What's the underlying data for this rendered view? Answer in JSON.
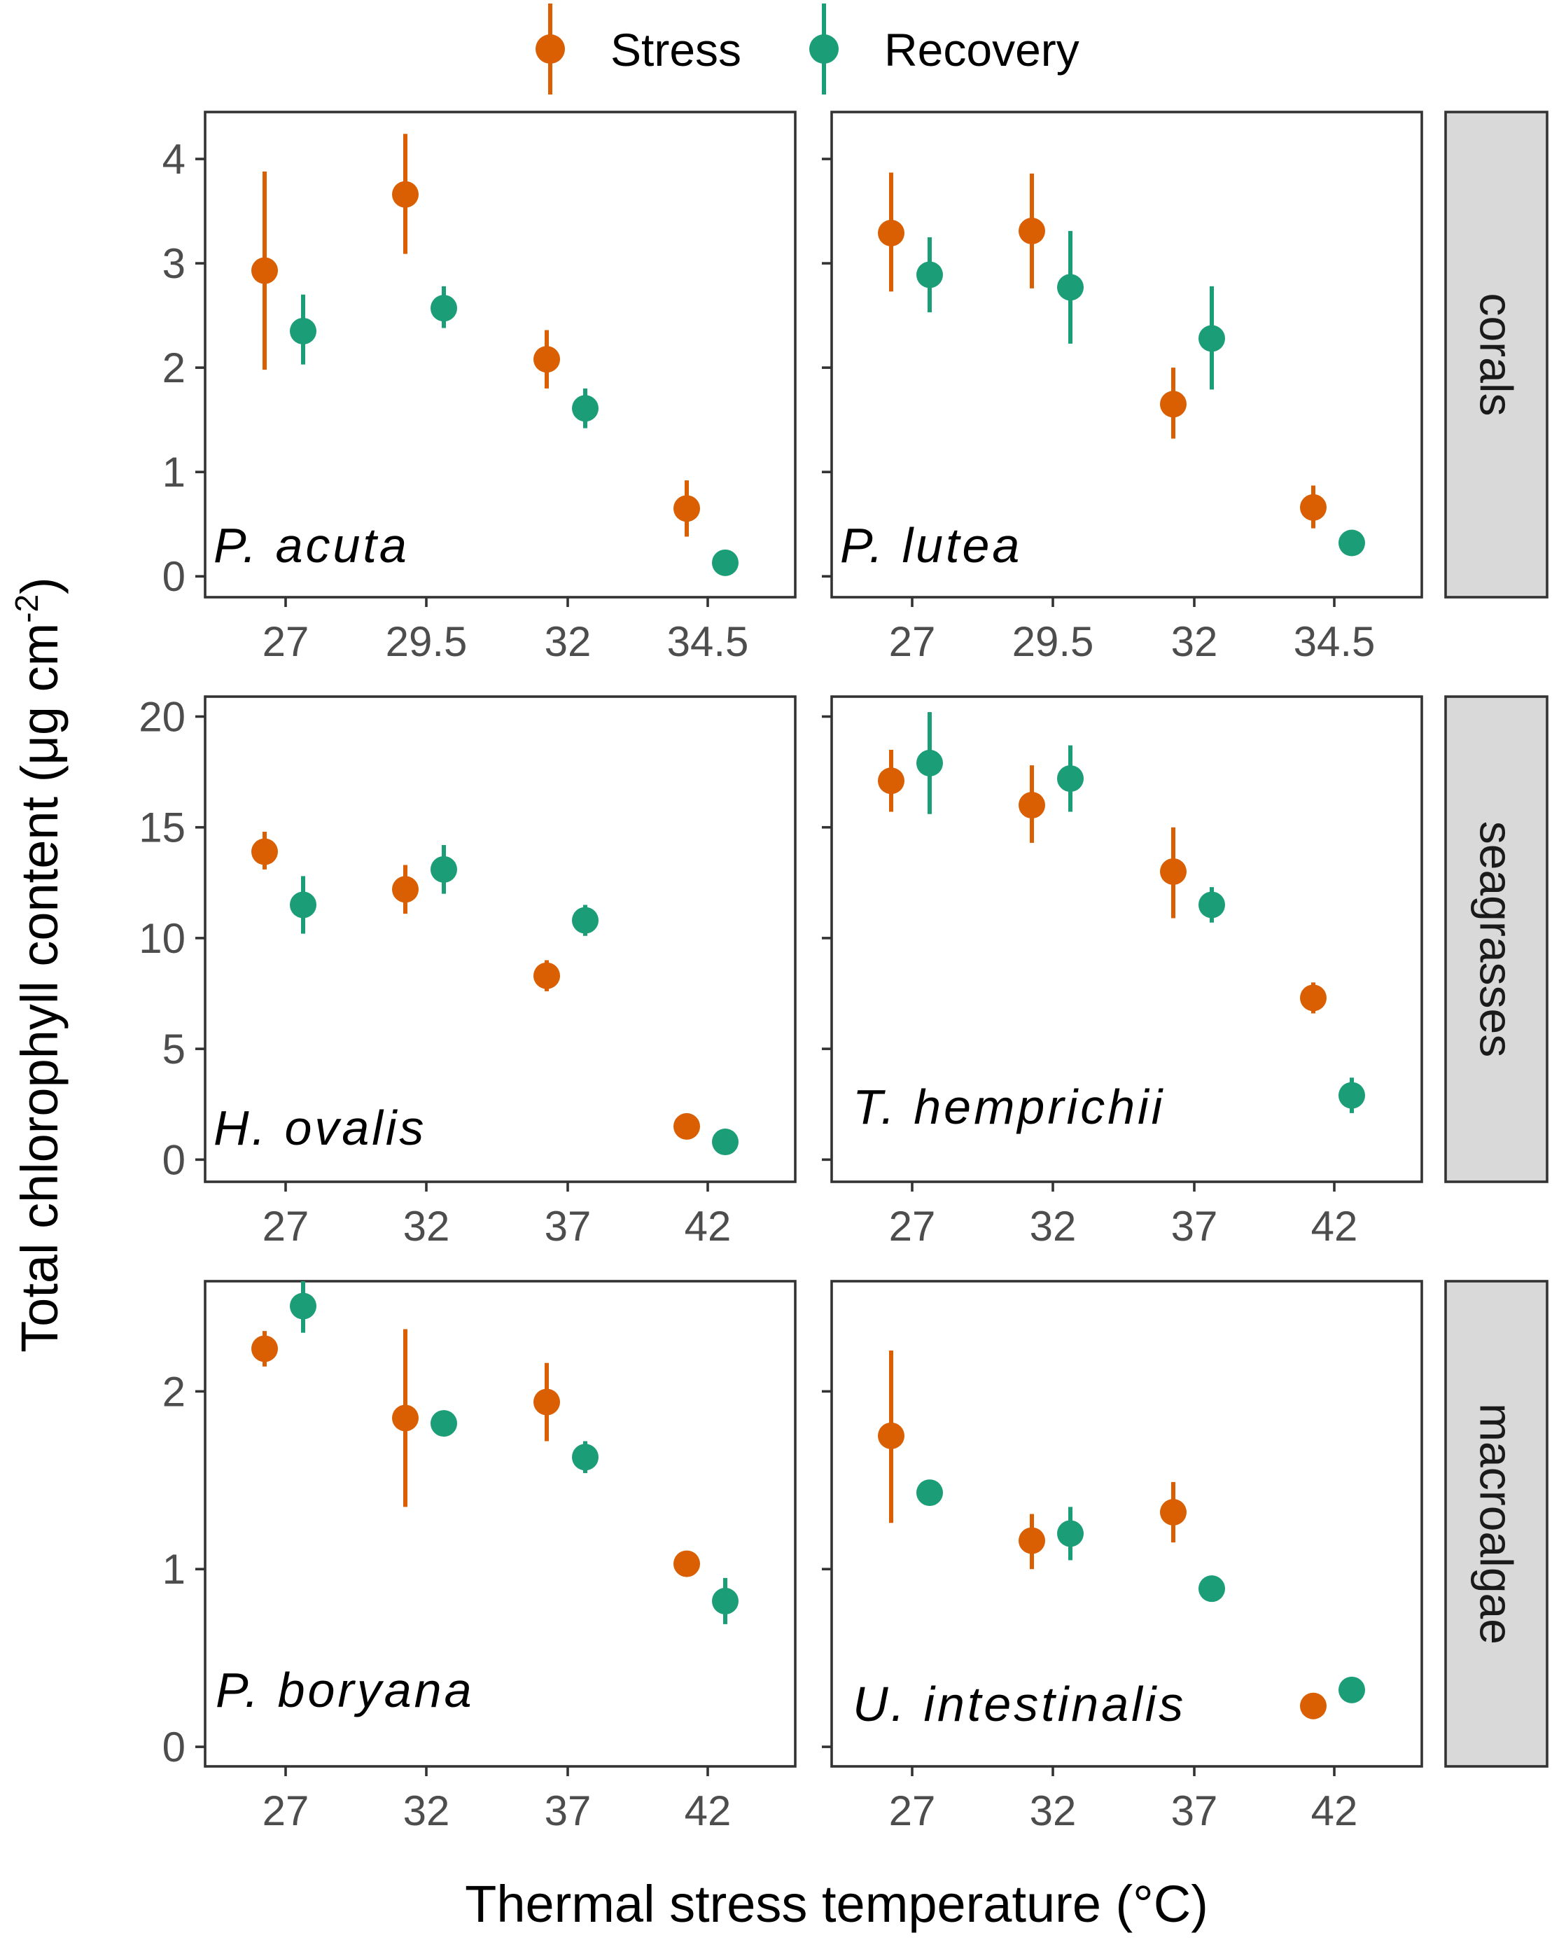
{
  "chart_data": {
    "type": "scatter",
    "subtype": "point-with-errorbars, faceted",
    "legend": {
      "position": "top",
      "items": [
        {
          "name": "Stress",
          "color": "#d95f02"
        },
        {
          "name": "Recovery",
          "color": "#1b9e77"
        }
      ]
    },
    "xlabel": "Thermal stress temperature (°C)",
    "ylabel": "Total chlorophyll content (μg cm",
    "ylabel_sup": "-2",
    "ylabel_close": ")",
    "rows": [
      {
        "group": "corals",
        "ylim": [
          -0.2,
          4.45
        ],
        "yticks": [
          0,
          1,
          2,
          3,
          4
        ],
        "xticks": [
          "27",
          "29.5",
          "32",
          "34.5"
        ],
        "panels": [
          {
            "species": "P. acuta",
            "series": [
              {
                "name": "Stress",
                "color": "#d95f02",
                "points": [
                  {
                    "x": 0,
                    "y": 2.93,
                    "lo": 1.98,
                    "hi": 3.88
                  },
                  {
                    "x": 1,
                    "y": 3.66,
                    "lo": 3.09,
                    "hi": 4.24
                  },
                  {
                    "x": 2,
                    "y": 2.08,
                    "lo": 1.8,
                    "hi": 2.36
                  },
                  {
                    "x": 3,
                    "y": 0.65,
                    "lo": 0.38,
                    "hi": 0.92
                  }
                ]
              },
              {
                "name": "Recovery",
                "color": "#1b9e77",
                "points": [
                  {
                    "x": 0,
                    "y": 2.35,
                    "lo": 2.03,
                    "hi": 2.7
                  },
                  {
                    "x": 1,
                    "y": 2.57,
                    "lo": 2.38,
                    "hi": 2.78
                  },
                  {
                    "x": 2,
                    "y": 1.61,
                    "lo": 1.42,
                    "hi": 1.8
                  },
                  {
                    "x": 3,
                    "y": 0.13,
                    "lo": 0.07,
                    "hi": 0.19
                  }
                ]
              }
            ]
          },
          {
            "species": "P. lutea",
            "series": [
              {
                "name": "Stress",
                "color": "#d95f02",
                "points": [
                  {
                    "x": 0,
                    "y": 3.29,
                    "lo": 2.73,
                    "hi": 3.87
                  },
                  {
                    "x": 1,
                    "y": 3.31,
                    "lo": 2.76,
                    "hi": 3.86
                  },
                  {
                    "x": 2,
                    "y": 1.65,
                    "lo": 1.32,
                    "hi": 2.0
                  },
                  {
                    "x": 3,
                    "y": 0.66,
                    "lo": 0.46,
                    "hi": 0.87
                  }
                ]
              },
              {
                "name": "Recovery",
                "color": "#1b9e77",
                "points": [
                  {
                    "x": 0,
                    "y": 2.89,
                    "lo": 2.53,
                    "hi": 3.25
                  },
                  {
                    "x": 1,
                    "y": 2.77,
                    "lo": 2.23,
                    "hi": 3.31
                  },
                  {
                    "x": 2,
                    "y": 2.28,
                    "lo": 1.79,
                    "hi": 2.78
                  },
                  {
                    "x": 3,
                    "y": 0.32,
                    "lo": 0.27,
                    "hi": 0.37
                  }
                ]
              }
            ]
          }
        ]
      },
      {
        "group": "seagrasses",
        "ylim": [
          -1.0,
          20.9
        ],
        "yticks": [
          0,
          5,
          10,
          15,
          20
        ],
        "xticks": [
          "27",
          "32",
          "37",
          "42"
        ],
        "panels": [
          {
            "species": "H. ovalis",
            "series": [
              {
                "name": "Stress",
                "color": "#d95f02",
                "points": [
                  {
                    "x": 0,
                    "y": 13.9,
                    "lo": 13.1,
                    "hi": 14.8
                  },
                  {
                    "x": 1,
                    "y": 12.2,
                    "lo": 11.1,
                    "hi": 13.3
                  },
                  {
                    "x": 2,
                    "y": 8.3,
                    "lo": 7.6,
                    "hi": 9.0
                  },
                  {
                    "x": 3,
                    "y": 1.5,
                    "lo": 1.2,
                    "hi": 1.8
                  }
                ]
              },
              {
                "name": "Recovery",
                "color": "#1b9e77",
                "points": [
                  {
                    "x": 0,
                    "y": 11.5,
                    "lo": 10.2,
                    "hi": 12.8
                  },
                  {
                    "x": 1,
                    "y": 13.1,
                    "lo": 12.0,
                    "hi": 14.2
                  },
                  {
                    "x": 2,
                    "y": 10.8,
                    "lo": 10.1,
                    "hi": 11.5
                  },
                  {
                    "x": 3,
                    "y": 0.8,
                    "lo": 0.6,
                    "hi": 1.0
                  }
                ]
              }
            ]
          },
          {
            "species": "T. hemprichii",
            "series": [
              {
                "name": "Stress",
                "color": "#d95f02",
                "points": [
                  {
                    "x": 0,
                    "y": 17.1,
                    "lo": 15.7,
                    "hi": 18.5
                  },
                  {
                    "x": 1,
                    "y": 16.0,
                    "lo": 14.3,
                    "hi": 17.8
                  },
                  {
                    "x": 2,
                    "y": 13.0,
                    "lo": 10.9,
                    "hi": 15.0
                  },
                  {
                    "x": 3,
                    "y": 7.3,
                    "lo": 6.6,
                    "hi": 8.0
                  }
                ]
              },
              {
                "name": "Recovery",
                "color": "#1b9e77",
                "points": [
                  {
                    "x": 0,
                    "y": 17.9,
                    "lo": 15.6,
                    "hi": 20.2
                  },
                  {
                    "x": 1,
                    "y": 17.2,
                    "lo": 15.7,
                    "hi": 18.7
                  },
                  {
                    "x": 2,
                    "y": 11.5,
                    "lo": 10.7,
                    "hi": 12.3
                  },
                  {
                    "x": 3,
                    "y": 2.9,
                    "lo": 2.1,
                    "hi": 3.7
                  }
                ]
              }
            ]
          }
        ]
      },
      {
        "group": "macroalgae",
        "ylim": [
          -0.11,
          2.62
        ],
        "yticks": [
          0,
          1,
          2
        ],
        "xticks": [
          "27",
          "32",
          "37",
          "42"
        ],
        "panels": [
          {
            "species": "P. boryana",
            "series": [
              {
                "name": "Stress",
                "color": "#d95f02",
                "points": [
                  {
                    "x": 0,
                    "y": 2.24,
                    "lo": 2.14,
                    "hi": 2.34
                  },
                  {
                    "x": 1,
                    "y": 1.85,
                    "lo": 1.35,
                    "hi": 2.35
                  },
                  {
                    "x": 2,
                    "y": 1.94,
                    "lo": 1.72,
                    "hi": 2.16
                  },
                  {
                    "x": 3,
                    "y": 1.03,
                    "lo": 0.98,
                    "hi": 1.08
                  }
                ]
              },
              {
                "name": "Recovery",
                "color": "#1b9e77",
                "points": [
                  {
                    "x": 0,
                    "y": 2.48,
                    "lo": 2.33,
                    "hi": 2.62
                  },
                  {
                    "x": 1,
                    "y": 1.82,
                    "lo": 1.77,
                    "hi": 1.87
                  },
                  {
                    "x": 2,
                    "y": 1.63,
                    "lo": 1.54,
                    "hi": 1.72
                  },
                  {
                    "x": 3,
                    "y": 0.82,
                    "lo": 0.69,
                    "hi": 0.95
                  }
                ]
              }
            ]
          },
          {
            "species": "U. intestinalis",
            "series": [
              {
                "name": "Stress",
                "color": "#d95f02",
                "points": [
                  {
                    "x": 0,
                    "y": 1.75,
                    "lo": 1.26,
                    "hi": 2.23
                  },
                  {
                    "x": 1,
                    "y": 1.16,
                    "lo": 1.0,
                    "hi": 1.31
                  },
                  {
                    "x": 2,
                    "y": 1.32,
                    "lo": 1.15,
                    "hi": 1.49
                  },
                  {
                    "x": 3,
                    "y": 0.23,
                    "lo": 0.18,
                    "hi": 0.28
                  }
                ]
              },
              {
                "name": "Recovery",
                "color": "#1b9e77",
                "points": [
                  {
                    "x": 0,
                    "y": 1.43,
                    "lo": 1.37,
                    "hi": 1.49
                  },
                  {
                    "x": 1,
                    "y": 1.2,
                    "lo": 1.05,
                    "hi": 1.35
                  },
                  {
                    "x": 2,
                    "y": 0.89,
                    "lo": 0.84,
                    "hi": 0.94
                  },
                  {
                    "x": 3,
                    "y": 0.32,
                    "lo": 0.27,
                    "hi": 0.37
                  }
                ]
              }
            ]
          }
        ]
      }
    ]
  }
}
